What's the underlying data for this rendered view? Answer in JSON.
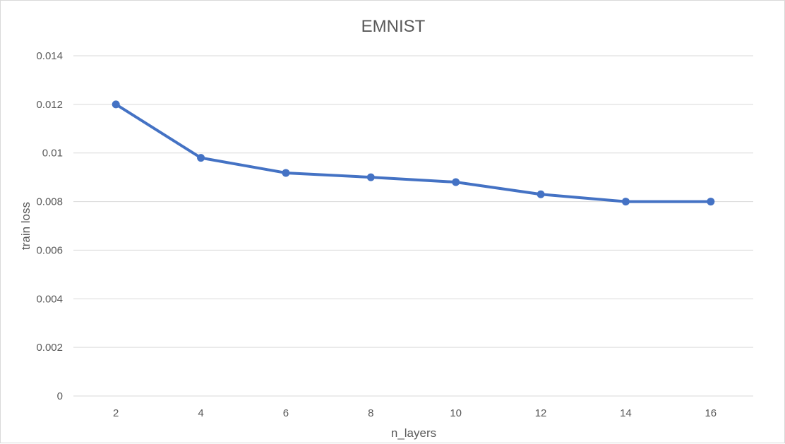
{
  "chart_data": {
    "type": "line",
    "title": "EMNIST",
    "xlabel": "n_layers",
    "ylabel": "train loss",
    "categories": [
      "2",
      "4",
      "6",
      "8",
      "10",
      "12",
      "14",
      "16"
    ],
    "series": [
      {
        "values": [
          0.012,
          0.0098,
          0.00918,
          0.009,
          0.0088,
          0.0083,
          0.008,
          0.008
        ],
        "color": "#4472C4"
      }
    ],
    "ylim": [
      0,
      0.014
    ],
    "yticks": [
      "0",
      "0.002",
      "0.004",
      "0.006",
      "0.008",
      "0.01",
      "0.012",
      "0.014"
    ],
    "grid": true,
    "legend": "none"
  }
}
